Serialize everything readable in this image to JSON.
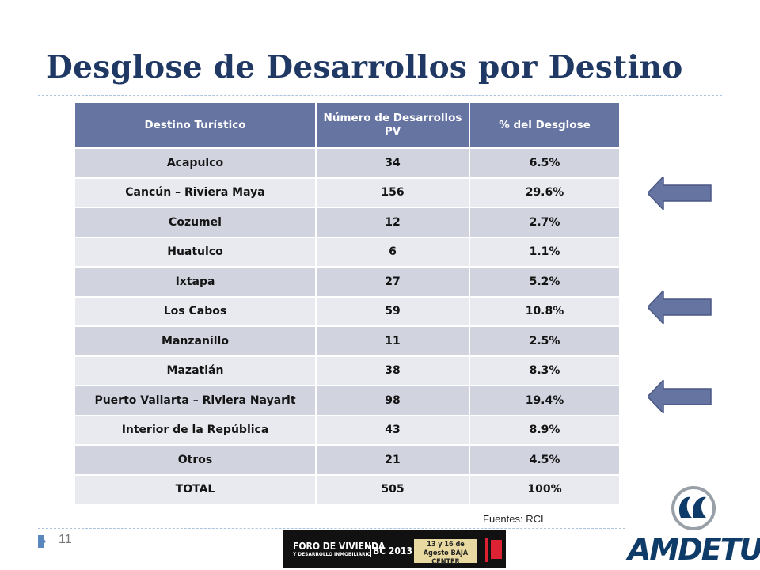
{
  "slide": {
    "title": "Desglose de Desarrollos por Destino",
    "page_number": "11",
    "source": "Fuentes:  RCI"
  },
  "table": {
    "headers": [
      "Destino Turístico",
      "Número de Desarrollos PV",
      "% del Desglose"
    ],
    "rows": [
      {
        "destino": "Acapulco",
        "numero": "34",
        "porcentaje": "6.5%"
      },
      {
        "destino": "Cancún – Riviera Maya",
        "numero": "156",
        "porcentaje": "29.6%"
      },
      {
        "destino": "Cozumel",
        "numero": "12",
        "porcentaje": "2.7%"
      },
      {
        "destino": "Huatulco",
        "numero": "6",
        "porcentaje": "1.1%"
      },
      {
        "destino": "Ixtapa",
        "numero": "27",
        "porcentaje": "5.2%"
      },
      {
        "destino": "Los Cabos",
        "numero": "59",
        "porcentaje": "10.8%"
      },
      {
        "destino": "Manzanillo",
        "numero": "11",
        "porcentaje": "2.5%"
      },
      {
        "destino": "Mazatlán",
        "numero": "38",
        "porcentaje": "8.3%"
      },
      {
        "destino": "Puerto Vallarta – Riviera Nayarit",
        "numero": "98",
        "porcentaje": "19.4%"
      },
      {
        "destino": "Interior de la República",
        "numero": "43",
        "porcentaje": "8.9%"
      },
      {
        "destino": "Otros",
        "numero": "21",
        "porcentaje": "4.5%"
      },
      {
        "destino": "TOTAL",
        "numero": "505",
        "porcentaje": "100%"
      }
    ]
  },
  "highlight_arrows": {
    "icon": "left-arrow-icon",
    "color": "#6674a2",
    "rows": [
      "Cancún – Riviera Maya",
      "Los Cabos",
      "Puerto Vallarta – Riviera Nayarit"
    ]
  },
  "event_banner": {
    "title_line1": "FORO DE VIVIENDA",
    "title_line2": "Y DESARROLLO INMOBILIARIO",
    "year": "BC 2013",
    "dates": "13 y 16 de Agosto BAJA CENTER"
  },
  "logo": {
    "text": "AMDETUR"
  },
  "colors": {
    "title": "#1f3864",
    "header_bg": "#6674a2",
    "row_dark": "#d1d4df",
    "row_light": "#e9eaef",
    "logo": "#0f3b68"
  }
}
